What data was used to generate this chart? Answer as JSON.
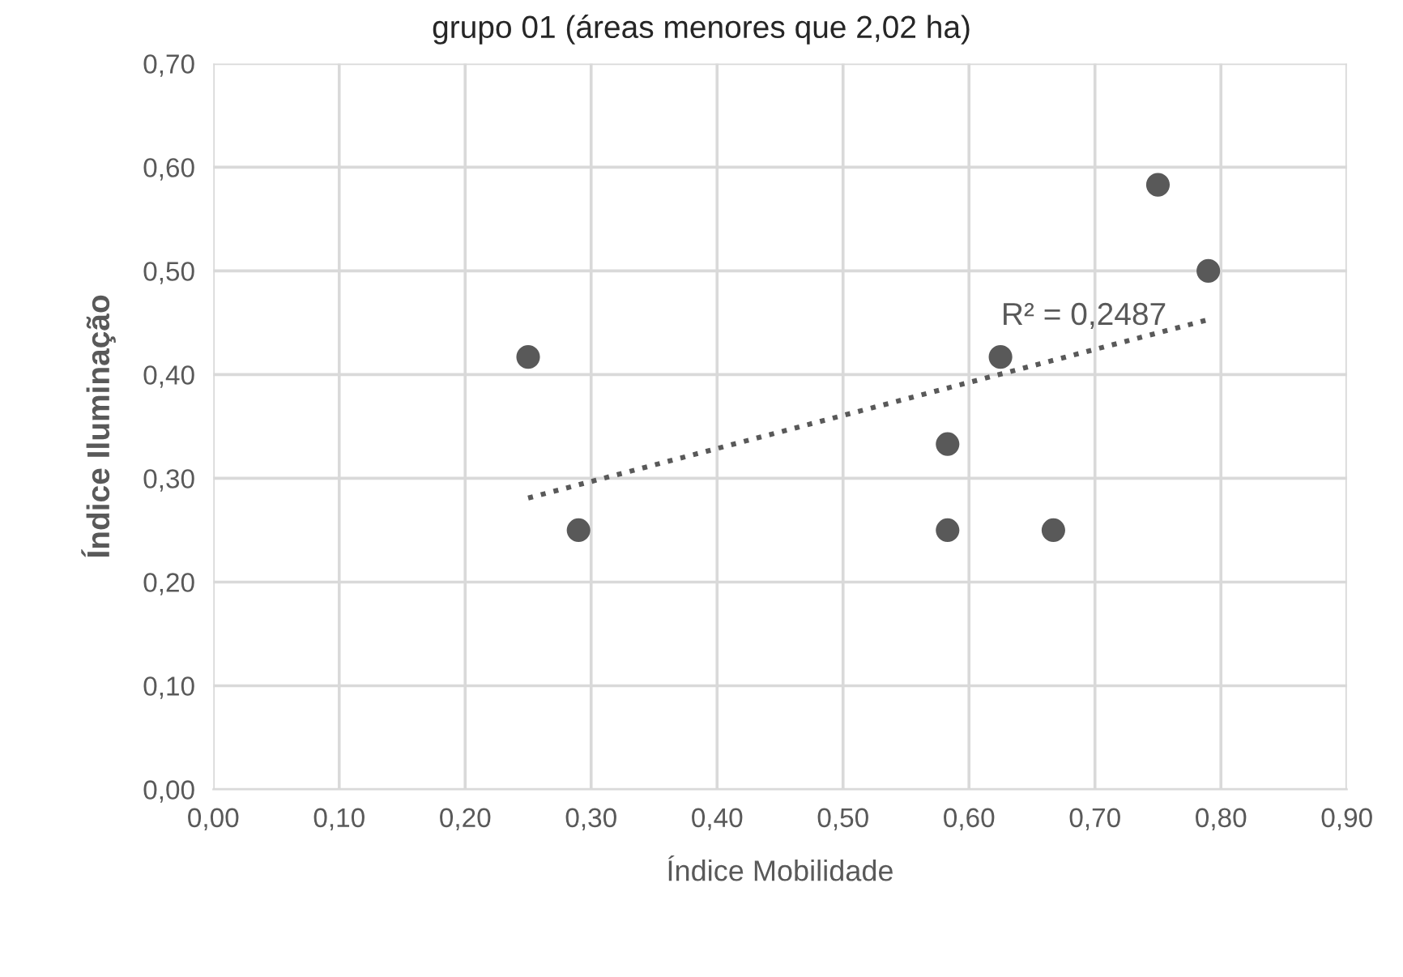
{
  "chart_data": {
    "type": "scatter",
    "title": "grupo 01 (áreas menores que 2,02 ha)",
    "xlabel": "Índice Mobilidade",
    "ylabel": "Índice Iluminação",
    "annotations": [
      "R² = 0,2487"
    ],
    "series": [
      {
        "color": "#595959",
        "marker": "circle",
        "x": [
          0.25,
          0.29,
          0.583,
          0.583,
          0.625,
          0.667,
          0.75,
          0.79
        ],
        "values": [
          0.417,
          0.25,
          0.333,
          0.25,
          0.417,
          0.25,
          0.583,
          0.5
        ]
      },
      {
        "type": "line",
        "color": "#595959",
        "line_style": "dotted",
        "marker": "none",
        "x": [
          0.25,
          0.79
        ],
        "values": [
          0.281,
          0.453
        ]
      }
    ],
    "xlim": [
      0,
      0.9
    ],
    "xticks": [
      {
        "value": 0,
        "label": "0,00"
      },
      {
        "value": 0.1,
        "label": "0,10"
      },
      {
        "value": 0.2,
        "label": "0,20"
      },
      {
        "value": 0.3,
        "label": "0,30"
      },
      {
        "value": 0.4,
        "label": "0,40"
      },
      {
        "value": 0.5,
        "label": "0,50"
      },
      {
        "value": 0.6,
        "label": "0,60"
      },
      {
        "value": 0.7,
        "label": "0,70"
      },
      {
        "value": 0.8,
        "label": "0,80"
      },
      {
        "value": 0.9,
        "label": "0,90"
      }
    ],
    "ylim": [
      0,
      0.7
    ],
    "yticks": [
      {
        "value": 0,
        "label": "0,00"
      },
      {
        "value": 0.1,
        "label": "0,10"
      },
      {
        "value": 0.2,
        "label": "0,20"
      },
      {
        "value": 0.3,
        "label": "0,30"
      },
      {
        "value": 0.4,
        "label": "0,40"
      },
      {
        "value": 0.5,
        "label": "0,50"
      },
      {
        "value": 0.6,
        "label": "0,60"
      },
      {
        "value": 0.7,
        "label": "0,70"
      }
    ],
    "grid": true,
    "legend": false
  }
}
